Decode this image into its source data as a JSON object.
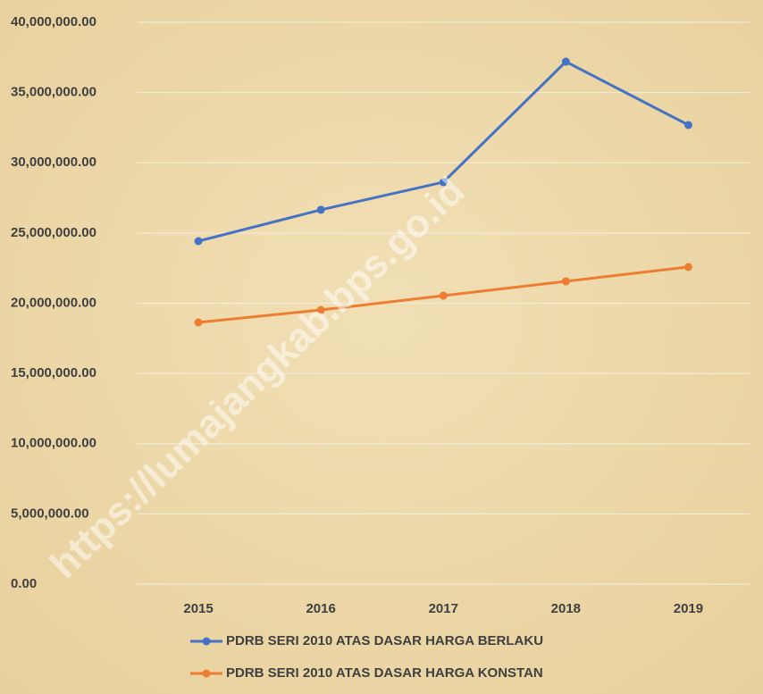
{
  "chart_data": {
    "type": "line",
    "categories": [
      "2015",
      "2016",
      "2017",
      "2018",
      "2019"
    ],
    "series": [
      {
        "name": "PDRB SERI 2010 ATAS DASAR HARGA BERLAKU",
        "color": "#4472c4",
        "values": [
          24420000,
          26650000,
          28620000,
          37200000,
          32690000
        ]
      },
      {
        "name": "PDRB SERI 2010 ATAS DASAR HARGA KONSTAN",
        "color": "#ed7d31",
        "values": [
          18630000,
          19520000,
          20540000,
          21560000,
          22580000
        ]
      }
    ],
    "ylim": [
      0,
      40000000
    ],
    "yticks": [
      {
        "value": 0,
        "label": "0.00"
      },
      {
        "value": 5000000,
        "label": "5,000,000.00"
      },
      {
        "value": 10000000,
        "label": "10,000,000.00"
      },
      {
        "value": 15000000,
        "label": "15,000,000.00"
      },
      {
        "value": 20000000,
        "label": "20,000,000.00"
      },
      {
        "value": 25000000,
        "label": "25,000,000.00"
      },
      {
        "value": 30000000,
        "label": "30,000,000.00"
      },
      {
        "value": 35000000,
        "label": "35,000,000.00"
      },
      {
        "value": 40000000,
        "label": "40,000,000.00"
      }
    ],
    "grid": true,
    "legend": "bottom",
    "watermark": "https://lumajangkab.bps.go.id"
  }
}
